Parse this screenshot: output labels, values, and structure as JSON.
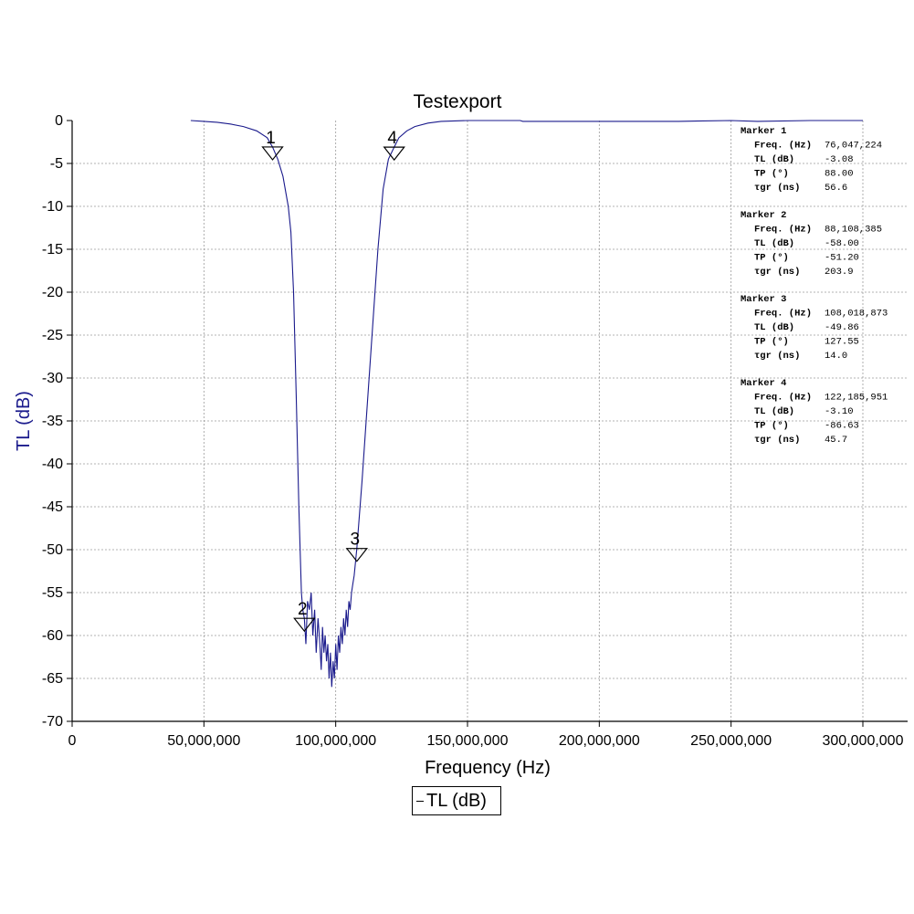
{
  "chart_data": {
    "type": "line",
    "title": "Testexport",
    "xlabel": "Frequency (Hz)",
    "ylabel": "TL (dB)",
    "xlim": [
      0,
      300000000
    ],
    "ylim": [
      -70,
      0
    ],
    "x_ticks": [
      0,
      50000000,
      100000000,
      150000000,
      200000000,
      250000000,
      300000000
    ],
    "x_tick_labels": [
      "0",
      "50,000,000",
      "100,000,000",
      "150,000,000",
      "200,000,000",
      "250,000,000",
      "300,000,000"
    ],
    "y_ticks": [
      0,
      -5,
      -10,
      -15,
      -20,
      -25,
      -30,
      -35,
      -40,
      -45,
      -50,
      -55,
      -60,
      -65,
      -70
    ],
    "y_tick_labels": [
      "0",
      "-5",
      "-10",
      "-15",
      "-20",
      "-25",
      "-30",
      "-35",
      "-40",
      "-45",
      "-50",
      "-55",
      "-60",
      "-65",
      "-70"
    ],
    "grid": true,
    "legend": {
      "placement": "bottom-center",
      "label": "TL (dB)"
    },
    "series": [
      {
        "name": "TL (dB)",
        "color": "#1a1a8c",
        "x": [
          45000000,
          50000000,
          55000000,
          60000000,
          65000000,
          70000000,
          74000000,
          76047224,
          78000000,
          80000000,
          82000000,
          83000000,
          84000000,
          85000000,
          86000000,
          87000000,
          87500000,
          88108385,
          88700000,
          89300000,
          90000000,
          90700000,
          91300000,
          92000000,
          92600000,
          93300000,
          94000000,
          94500000,
          95000000,
          95500000,
          96000000,
          96500000,
          97000000,
          97500000,
          98000000,
          98500000,
          99000000,
          99500000,
          100000000,
          100500000,
          101000000,
          101500000,
          102000000,
          102500000,
          103000000,
          103500000,
          104000000,
          104500000,
          105000000,
          105500000,
          106000000,
          106500000,
          107000000,
          108018873,
          109000000,
          110000000,
          112000000,
          114000000,
          116000000,
          118000000,
          120000000,
          122185951,
          124000000,
          127000000,
          130000000,
          135000000,
          140000000,
          150000000,
          170000000,
          171000000,
          200000000,
          230000000,
          250000000,
          260000000,
          280000000,
          300000000
        ],
        "y": [
          0,
          -0.1,
          -0.2,
          -0.4,
          -0.7,
          -1.2,
          -2.0,
          -3.08,
          -4.5,
          -6.5,
          -10,
          -13,
          -20,
          -32,
          -45,
          -55,
          -57,
          -58,
          -61,
          -56,
          -57,
          -55,
          -60,
          -57,
          -62,
          -58,
          -61,
          -64,
          -59,
          -62,
          -60,
          -63,
          -61,
          -65,
          -62,
          -66,
          -63,
          -65,
          -61,
          -64,
          -60,
          -62,
          -59,
          -61,
          -58,
          -60,
          -57,
          -59,
          -56,
          -57,
          -55,
          -54,
          -53,
          -49.86,
          -46,
          -42,
          -33,
          -24,
          -15,
          -8,
          -4.5,
          -3.1,
          -2.0,
          -1.2,
          -0.7,
          -0.3,
          -0.1,
          0,
          0,
          -0.1,
          -0.1,
          -0.1,
          0,
          -0.1,
          0,
          0
        ]
      }
    ],
    "markers": [
      {
        "label": "1",
        "x": 76047224,
        "y": -3.08
      },
      {
        "label": "2",
        "x": 88108385,
        "y": -58.0
      },
      {
        "label": "3",
        "x": 108018873,
        "y": -49.86
      },
      {
        "label": "4",
        "x": 122185951,
        "y": -3.1
      }
    ]
  },
  "marker_table": [
    {
      "header": "Marker 1",
      "rows": [
        {
          "label": "Freq. (Hz)",
          "value": "76,047,224"
        },
        {
          "label": "TL (dB)",
          "value": "-3.08"
        },
        {
          "label": "TP (°)",
          "value": "88.00"
        },
        {
          "label": "τgr (ns)",
          "value": "56.6"
        }
      ]
    },
    {
      "header": "Marker 2",
      "rows": [
        {
          "label": "Freq. (Hz)",
          "value": "88,108,385"
        },
        {
          "label": "TL (dB)",
          "value": "-58.00"
        },
        {
          "label": "TP (°)",
          "value": "-51.20"
        },
        {
          "label": "τgr (ns)",
          "value": "203.9"
        }
      ]
    },
    {
      "header": "Marker 3",
      "rows": [
        {
          "label": "Freq. (Hz)",
          "value": "108,018,873"
        },
        {
          "label": "TL (dB)",
          "value": "-49.86"
        },
        {
          "label": "TP (°)",
          "value": "127.55"
        },
        {
          "label": "τgr (ns)",
          "value": "14.0"
        }
      ]
    },
    {
      "header": "Marker 4",
      "rows": [
        {
          "label": "Freq. (Hz)",
          "value": "122,185,951"
        },
        {
          "label": "TL (dB)",
          "value": "-3.10"
        },
        {
          "label": "TP (°)",
          "value": "-86.63"
        },
        {
          "label": "τgr (ns)",
          "value": "45.7"
        }
      ]
    }
  ]
}
